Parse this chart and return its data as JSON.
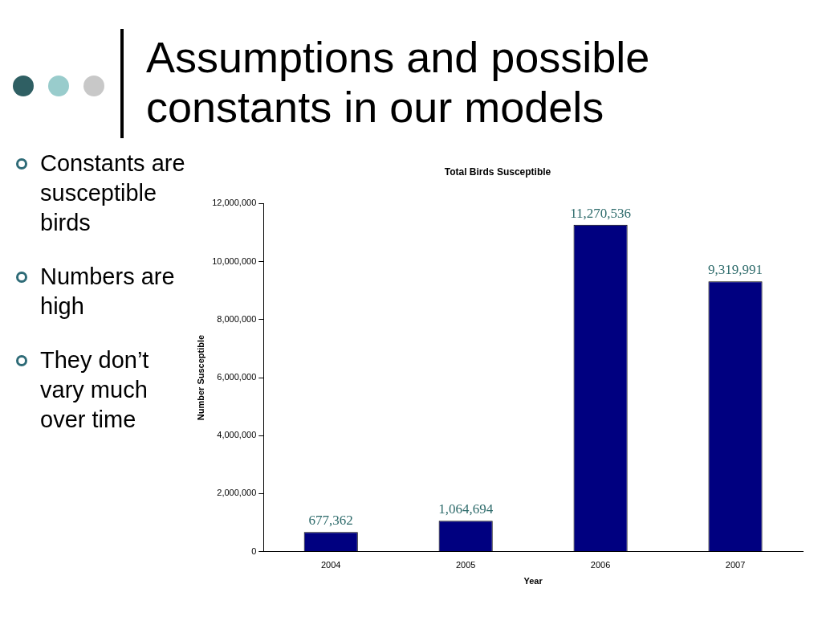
{
  "chart_data": {
    "type": "bar",
    "title": "Assumptions and possible constants in our models",
    "subtitle": "Total Birds Susceptible",
    "xlabel": "Year",
    "ylabel": "Number Susceptible",
    "categories": [
      "2004",
      "2005",
      "2006",
      "2007"
    ],
    "values": [
      677362,
      1064694,
      11270536,
      9319991
    ],
    "value_labels": [
      "677,362",
      "1,064,694",
      "11,270,536",
      "9,319,991"
    ],
    "color": "#000080",
    "ylim": [
      0,
      12000000
    ],
    "yticks": [
      {
        "value": 0,
        "label": "0"
      },
      {
        "value": 2000000,
        "label": "2,000,000"
      },
      {
        "value": 4000000,
        "label": "4,000,000"
      },
      {
        "value": 6000000,
        "label": "6,000,000"
      },
      {
        "value": 8000000,
        "label": "8,000,000"
      },
      {
        "value": 10000000,
        "label": "10,000,000"
      },
      {
        "value": 12000000,
        "label": "12,000,000"
      }
    ],
    "grid": false,
    "legend": false,
    "annotations": [
      "Constants are susceptible birds",
      "Numbers are high",
      "They don’t vary much over time"
    ]
  }
}
